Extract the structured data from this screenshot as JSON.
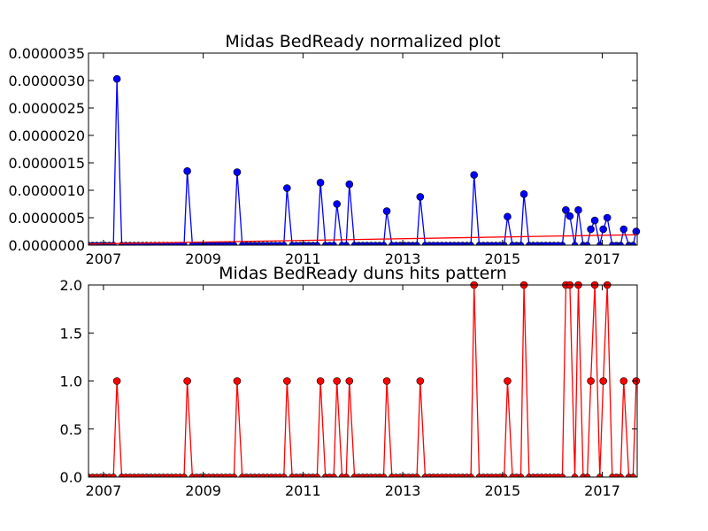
{
  "chart_data": [
    {
      "type": "line",
      "title": "Midas BedReady normalized plot",
      "xlim": [
        2006.7,
        2017.7
      ],
      "ylim": [
        0,
        3.5e-06
      ],
      "x_ticks": [
        2007,
        2009,
        2011,
        2013,
        2015,
        2017
      ],
      "x_tick_labels": [
        "2007",
        "2009",
        "2011",
        "2013",
        "2015",
        "2017"
      ],
      "y_ticks": [
        0,
        5e-07,
        1e-06,
        1.5e-06,
        2e-06,
        2.5e-06,
        3e-06,
        3.5e-06
      ],
      "y_tick_labels": [
        "0.0000000",
        "0.0000005",
        "0.0000010",
        "0.0000015",
        "0.0000020",
        "0.0000025",
        "0.0000030",
        "0.0000035"
      ],
      "grid": false,
      "series": [
        {
          "color": "#0000ff",
          "marker": "circle",
          "spikes": [
            {
              "x": 2007.27,
              "y": 3.03e-06
            },
            {
              "x": 2008.68,
              "y": 1.35e-06
            },
            {
              "x": 2009.68,
              "y": 1.33e-06
            },
            {
              "x": 2010.68,
              "y": 1.04e-06
            },
            {
              "x": 2011.35,
              "y": 1.14e-06
            },
            {
              "x": 2011.68,
              "y": 7.5e-07
            },
            {
              "x": 2011.93,
              "y": 1.11e-06
            },
            {
              "x": 2012.68,
              "y": 6.2e-07
            },
            {
              "x": 2013.35,
              "y": 8.8e-07
            },
            {
              "x": 2014.43,
              "y": 1.28e-06
            },
            {
              "x": 2015.1,
              "y": 5.2e-07
            },
            {
              "x": 2015.43,
              "y": 9.3e-07
            },
            {
              "x": 2016.27,
              "y": 6.4e-07
            },
            {
              "x": 2016.35,
              "y": 5.3e-07
            },
            {
              "x": 2016.52,
              "y": 6.4e-07
            },
            {
              "x": 2016.77,
              "y": 2.9e-07
            },
            {
              "x": 2016.85,
              "y": 4.5e-07
            },
            {
              "x": 2017.02,
              "y": 2.9e-07
            },
            {
              "x": 2017.1,
              "y": 5e-07
            },
            {
              "x": 2017.43,
              "y": 2.9e-07
            },
            {
              "x": 2017.68,
              "y": 2.5e-07
            }
          ]
        },
        {
          "color": "#ff0000",
          "marker": "none",
          "trend": [
            {
              "x": 2006.7,
              "y": 2e-08
            },
            {
              "x": 2017.7,
              "y": 1.9e-07
            }
          ]
        }
      ]
    },
    {
      "type": "line",
      "title": "Midas BedReady duns hits pattern",
      "xlim": [
        2006.7,
        2017.7
      ],
      "ylim": [
        0,
        2
      ],
      "x_ticks": [
        2007,
        2009,
        2011,
        2013,
        2015,
        2017
      ],
      "x_tick_labels": [
        "2007",
        "2009",
        "2011",
        "2013",
        "2015",
        "2017"
      ],
      "y_ticks": [
        0,
        0.5,
        1,
        1.5,
        2
      ],
      "y_tick_labels": [
        "0.0",
        "0.5",
        "1.0",
        "1.5",
        "2.0"
      ],
      "grid": false,
      "series": [
        {
          "color": "#ff0000",
          "marker": "circle",
          "spikes": [
            {
              "x": 2007.27,
              "y": 1
            },
            {
              "x": 2008.68,
              "y": 1
            },
            {
              "x": 2009.68,
              "y": 1
            },
            {
              "x": 2010.68,
              "y": 1
            },
            {
              "x": 2011.35,
              "y": 1
            },
            {
              "x": 2011.68,
              "y": 1
            },
            {
              "x": 2011.93,
              "y": 1
            },
            {
              "x": 2012.68,
              "y": 1
            },
            {
              "x": 2013.35,
              "y": 1
            },
            {
              "x": 2014.43,
              "y": 2
            },
            {
              "x": 2015.1,
              "y": 1
            },
            {
              "x": 2015.43,
              "y": 2
            },
            {
              "x": 2016.27,
              "y": 2
            },
            {
              "x": 2016.35,
              "y": 2
            },
            {
              "x": 2016.52,
              "y": 2
            },
            {
              "x": 2016.77,
              "y": 1
            },
            {
              "x": 2016.85,
              "y": 2
            },
            {
              "x": 2017.02,
              "y": 1
            },
            {
              "x": 2017.1,
              "y": 2
            },
            {
              "x": 2017.43,
              "y": 1
            },
            {
              "x": 2017.68,
              "y": 1
            }
          ]
        }
      ]
    }
  ]
}
